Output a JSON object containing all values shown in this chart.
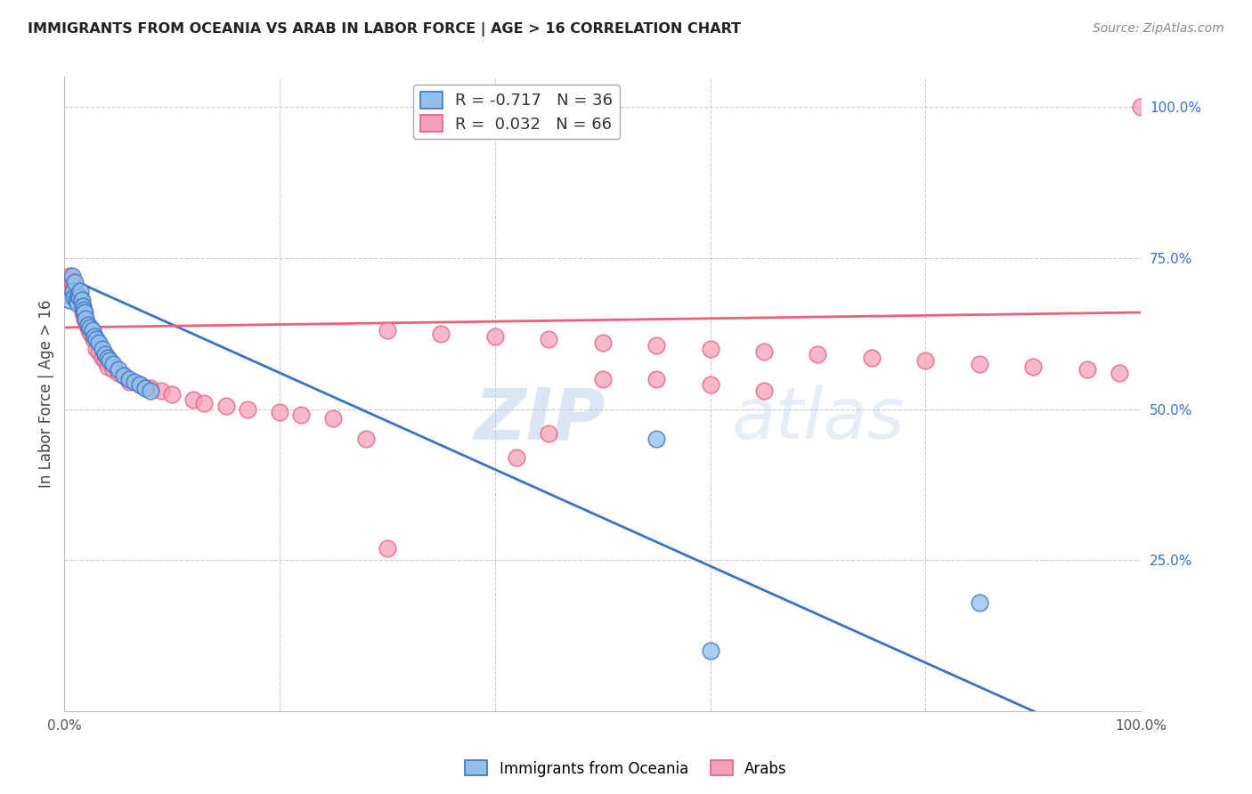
{
  "title": "IMMIGRANTS FROM OCEANIA VS ARAB IN LABOR FORCE | AGE > 16 CORRELATION CHART",
  "source": "Source: ZipAtlas.com",
  "ylabel": "In Labor Force | Age > 16",
  "legend_entry1": "R = -0.717   N = 36",
  "legend_entry2": "R =  0.032   N = 66",
  "legend_label1": "Immigrants from Oceania",
  "legend_label2": "Arabs",
  "oceania_color": "#92c0ea",
  "arab_color": "#f5a0bb",
  "trendline_oceania_color": "#3a72c4",
  "trendline_arab_color": "#e8607a",
  "background_color": "#ffffff",
  "grid_color": "#cccccc",
  "watermark": "ZIPatlas",
  "oceania_x": [
    0.005,
    0.007,
    0.008,
    0.009,
    0.01,
    0.011,
    0.012,
    0.013,
    0.014,
    0.015,
    0.016,
    0.017,
    0.018,
    0.019,
    0.02,
    0.022,
    0.024,
    0.026,
    0.028,
    0.03,
    0.032,
    0.035,
    0.038,
    0.04,
    0.042,
    0.045,
    0.05,
    0.055,
    0.06,
    0.065,
    0.07,
    0.075,
    0.08,
    0.55,
    0.85,
    0.6
  ],
  "oceania_y": [
    0.68,
    0.72,
    0.695,
    0.685,
    0.71,
    0.68,
    0.675,
    0.69,
    0.685,
    0.695,
    0.68,
    0.67,
    0.665,
    0.66,
    0.65,
    0.64,
    0.635,
    0.63,
    0.62,
    0.615,
    0.61,
    0.6,
    0.59,
    0.585,
    0.58,
    0.575,
    0.565,
    0.555,
    0.55,
    0.545,
    0.54,
    0.535,
    0.53,
    0.45,
    0.18,
    0.1
  ],
  "arab_x": [
    0.003,
    0.005,
    0.006,
    0.007,
    0.008,
    0.009,
    0.01,
    0.011,
    0.012,
    0.013,
    0.014,
    0.015,
    0.016,
    0.017,
    0.018,
    0.019,
    0.02,
    0.021,
    0.022,
    0.023,
    0.025,
    0.027,
    0.03,
    0.032,
    0.035,
    0.038,
    0.04,
    0.045,
    0.05,
    0.055,
    0.06,
    0.07,
    0.08,
    0.09,
    0.1,
    0.12,
    0.13,
    0.15,
    0.17,
    0.2,
    0.22,
    0.25,
    0.28,
    0.3,
    0.35,
    0.4,
    0.42,
    0.45,
    0.5,
    0.55,
    0.6,
    0.65,
    0.7,
    0.75,
    0.8,
    0.85,
    0.9,
    0.95,
    0.98,
    1.0,
    0.3,
    0.45,
    0.5,
    0.55,
    0.6,
    0.65
  ],
  "arab_y": [
    0.69,
    0.72,
    0.715,
    0.71,
    0.705,
    0.7,
    0.695,
    0.69,
    0.685,
    0.68,
    0.675,
    0.685,
    0.67,
    0.66,
    0.655,
    0.65,
    0.645,
    0.64,
    0.635,
    0.63,
    0.625,
    0.615,
    0.6,
    0.595,
    0.585,
    0.58,
    0.57,
    0.565,
    0.56,
    0.555,
    0.545,
    0.54,
    0.535,
    0.53,
    0.525,
    0.515,
    0.51,
    0.505,
    0.5,
    0.495,
    0.49,
    0.485,
    0.45,
    0.63,
    0.625,
    0.62,
    0.42,
    0.615,
    0.61,
    0.605,
    0.6,
    0.595,
    0.59,
    0.585,
    0.58,
    0.575,
    0.57,
    0.565,
    0.56,
    1.0,
    0.27,
    0.46,
    0.55,
    0.55,
    0.54,
    0.53
  ],
  "oceania_trendline": [
    0.0,
    1.0,
    0.72,
    -0.08
  ],
  "arab_trendline": [
    0.0,
    1.0,
    0.635,
    0.66
  ],
  "xlim": [
    0.0,
    1.0
  ],
  "ylim": [
    0.0,
    1.05
  ]
}
